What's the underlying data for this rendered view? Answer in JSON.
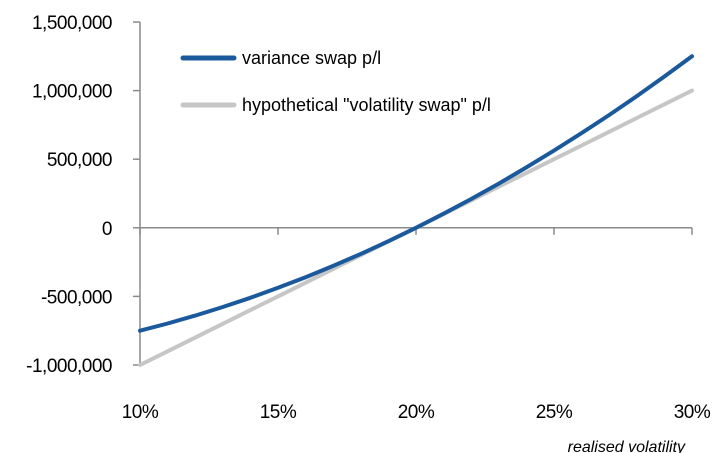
{
  "chart_data": {
    "type": "line",
    "title": "",
    "xlabel": "realised volatility",
    "ylabel": "",
    "xlim": [
      10,
      30
    ],
    "ylim": [
      -1000000,
      1500000
    ],
    "x_ticks": [
      "10%",
      "15%",
      "20%",
      "25%",
      "30%"
    ],
    "y_ticks": [
      "1,500,000",
      "1,000,000",
      "500,000",
      "0",
      "-500,000",
      "-1,000,000"
    ],
    "grid": false,
    "legend_position": "top-left",
    "series": [
      {
        "name": "variance swap p/l",
        "color": "#1a5a9c",
        "x": [
          10,
          11,
          12,
          13,
          14,
          15,
          16,
          17,
          18,
          19,
          20,
          21,
          22,
          23,
          24,
          25,
          26,
          27,
          28,
          29,
          30
        ],
        "y": [
          -750000,
          -697500,
          -640000,
          -577500,
          -510000,
          -437500,
          -360000,
          -277500,
          -190000,
          -97500,
          0,
          102500,
          210000,
          322500,
          440000,
          562500,
          690000,
          822500,
          960000,
          1102500,
          1250000
        ]
      },
      {
        "name": "hypothetical \"volatility swap\" p/l",
        "color": "#c6c6c6",
        "x": [
          10,
          11,
          12,
          13,
          14,
          15,
          16,
          17,
          18,
          19,
          20,
          21,
          22,
          23,
          24,
          25,
          26,
          27,
          28,
          29,
          30
        ],
        "y": [
          -1000000,
          -900000,
          -800000,
          -700000,
          -600000,
          -500000,
          -400000,
          -300000,
          -200000,
          -100000,
          0,
          100000,
          200000,
          300000,
          400000,
          500000,
          600000,
          700000,
          800000,
          900000,
          1000000
        ]
      }
    ]
  }
}
